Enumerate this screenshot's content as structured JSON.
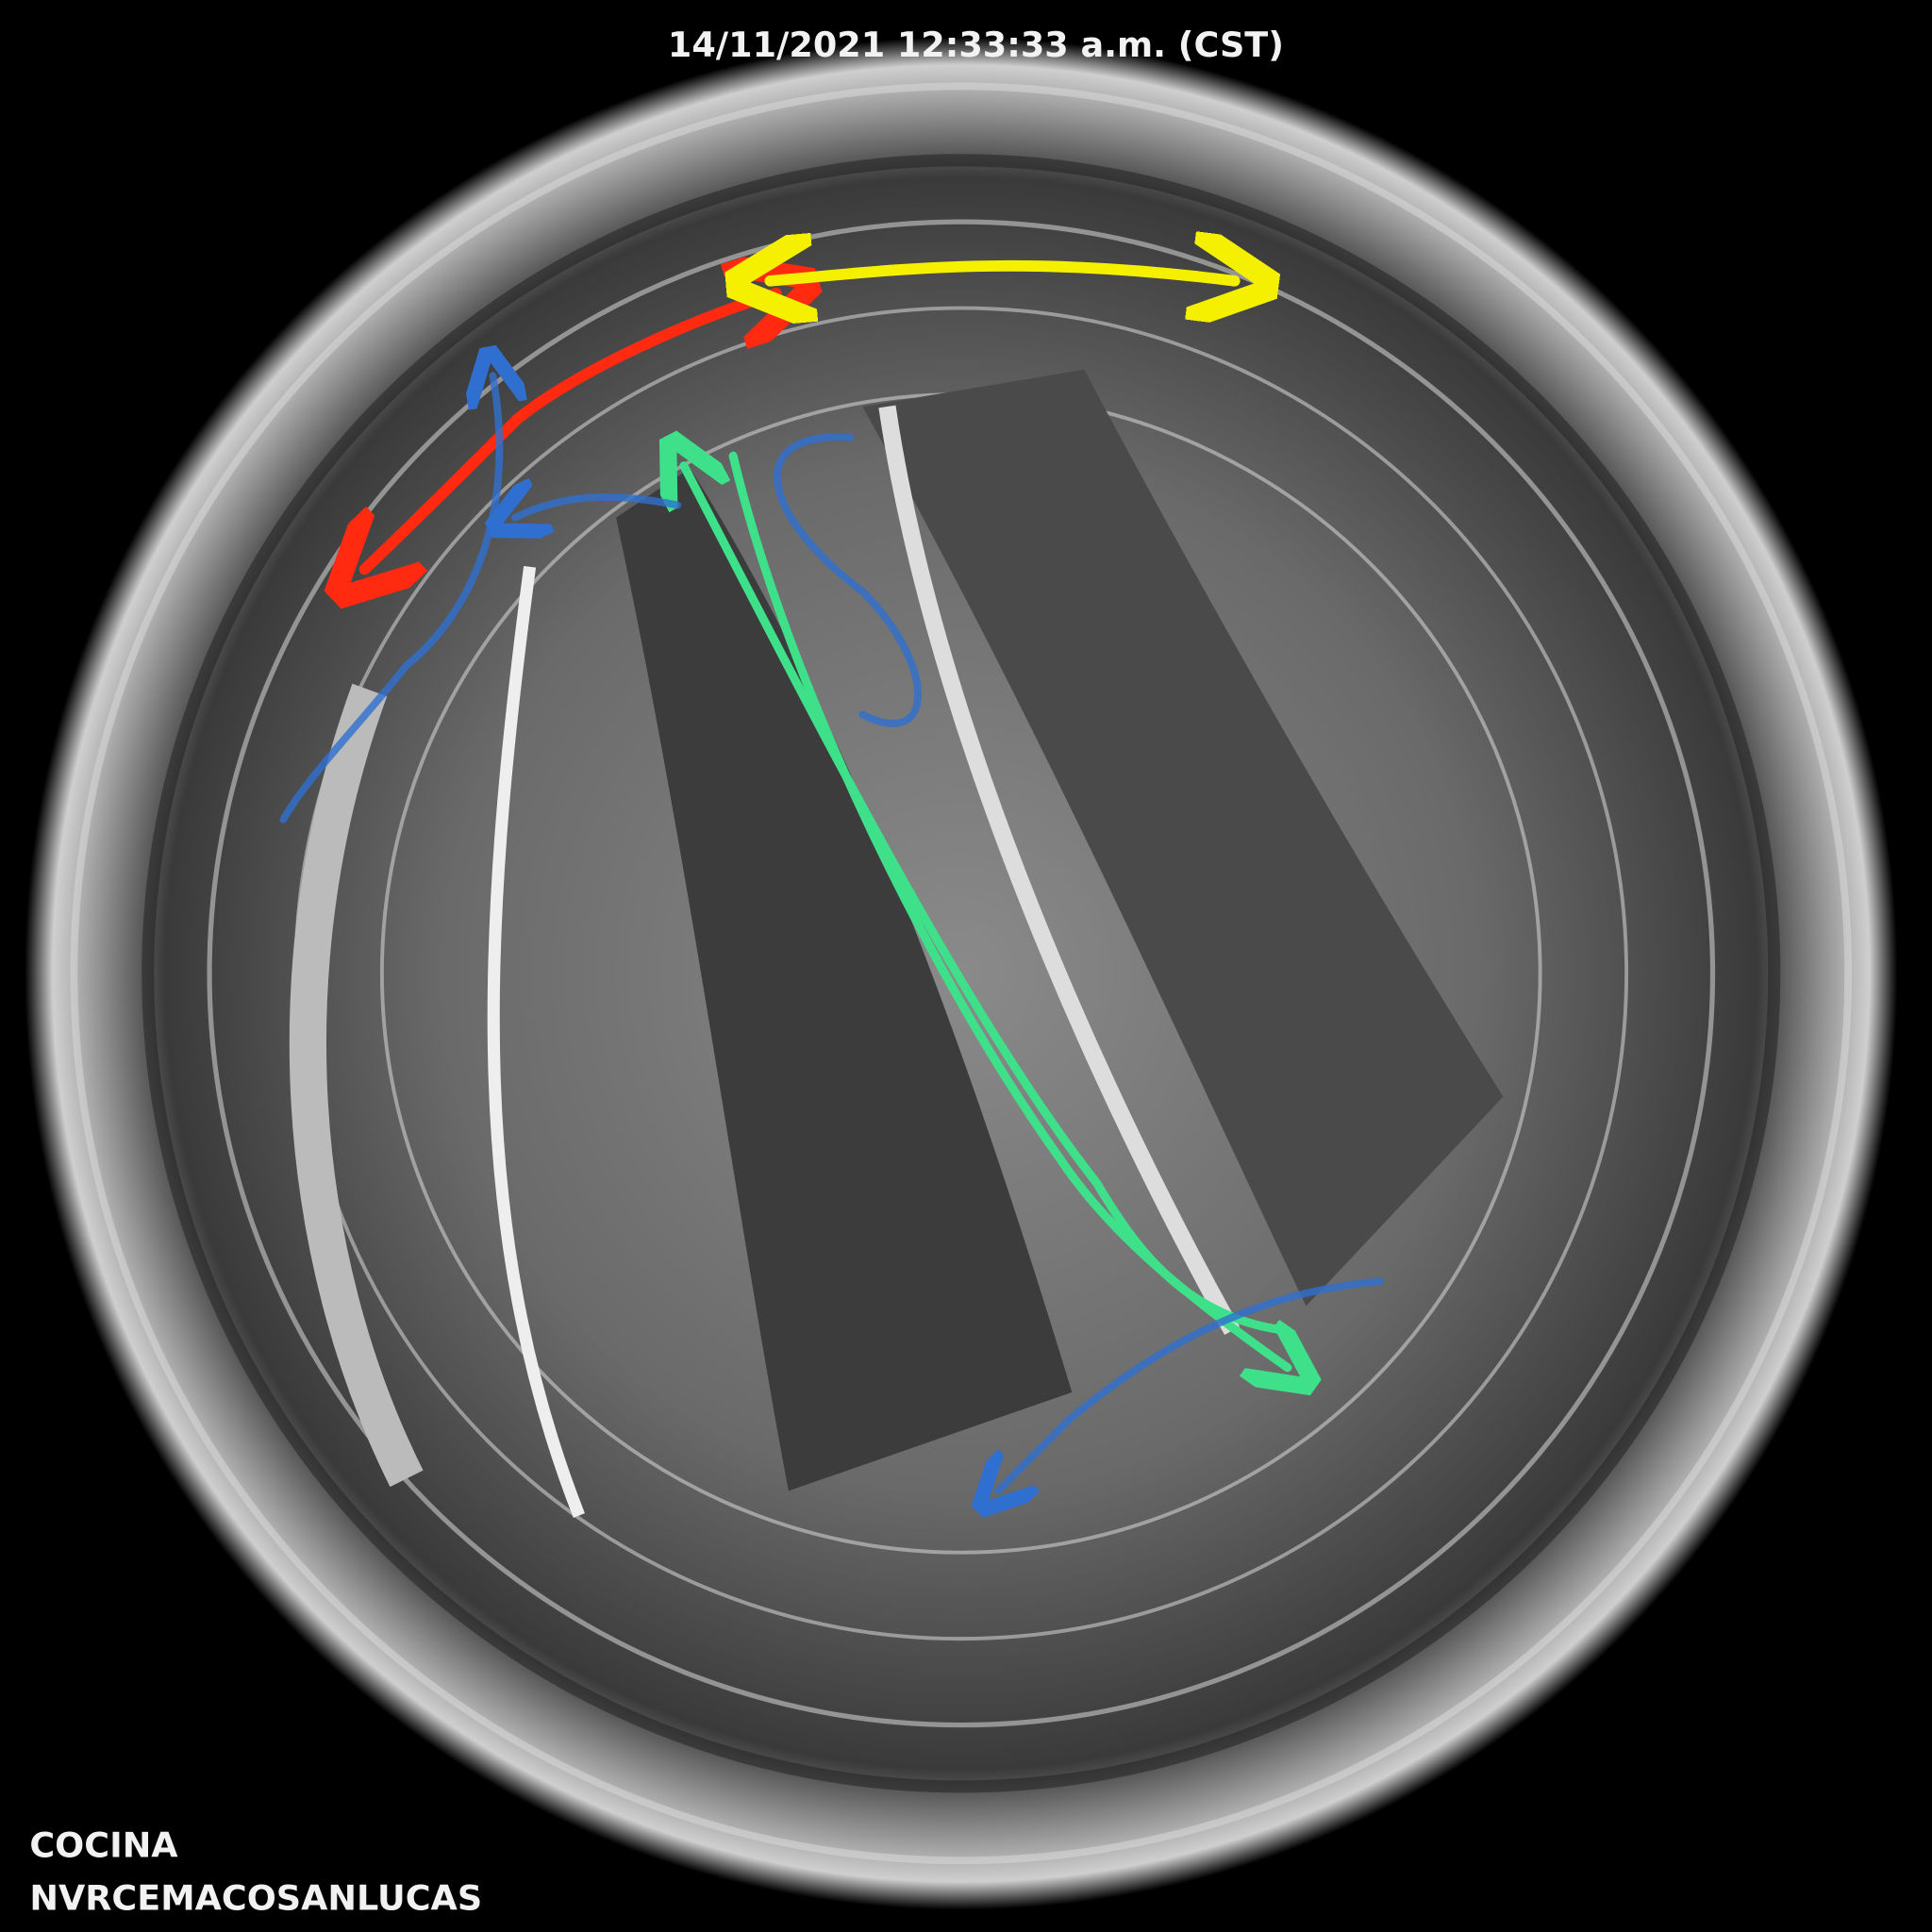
{
  "overlay": {
    "timestamp": "14/11/2021 12:33:33 a.m. (CST)",
    "area": "COCINA",
    "recorder": "NVRCEMACOSANLUCAS"
  }
}
